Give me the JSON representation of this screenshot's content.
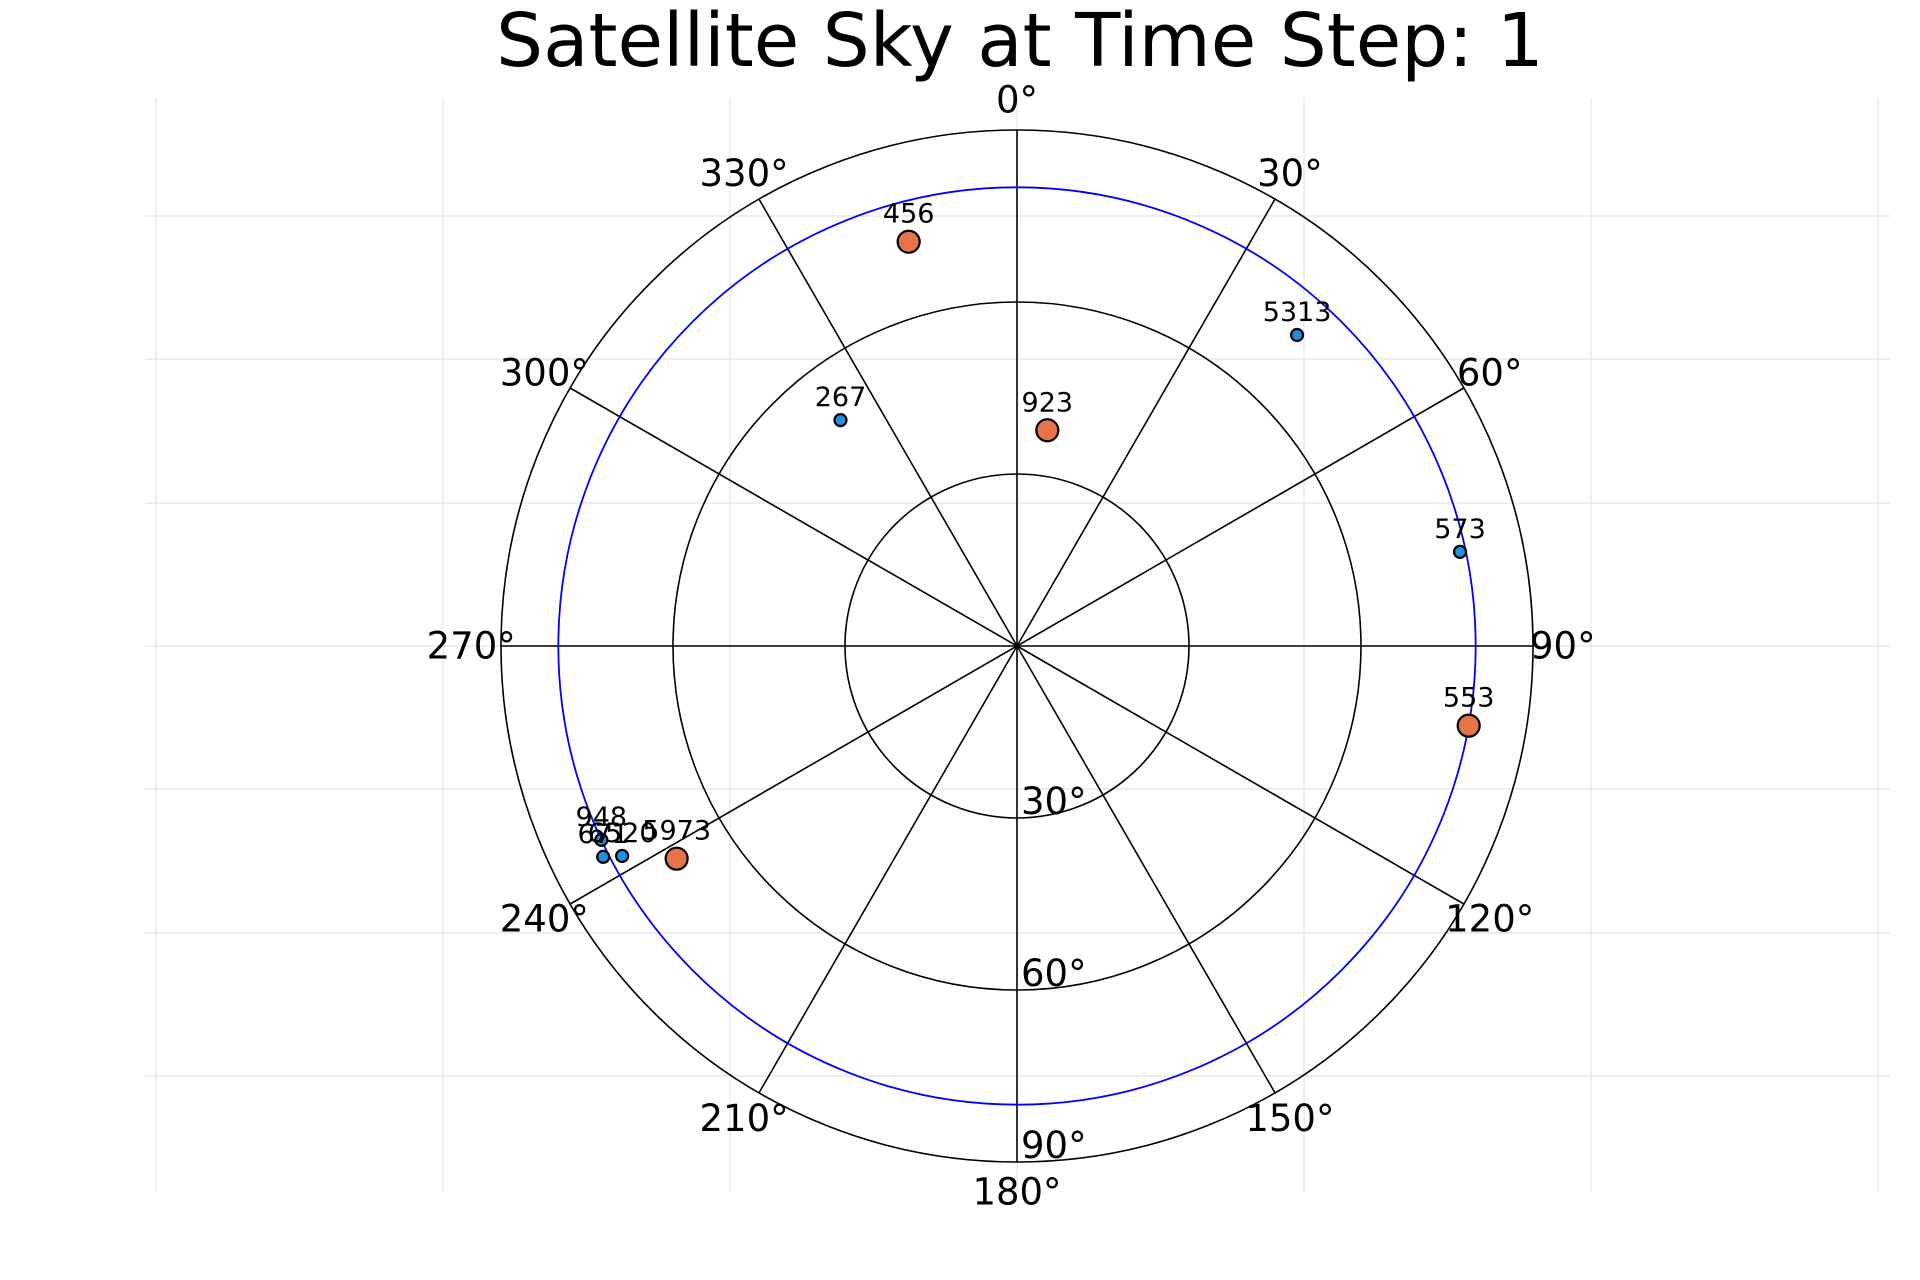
{
  "chart_data": {
    "type": "scatter",
    "projection": "polar",
    "title": "Satellite Sky at Time Step:  1",
    "angular_axis": {
      "zero_location": "top",
      "direction": "clockwise",
      "tick_labels": [
        "0°",
        "30°",
        "60°",
        "90°",
        "120°",
        "150°",
        "180°",
        "210°",
        "240°",
        "270°",
        "300°",
        "330°"
      ]
    },
    "radial_axis": {
      "quantity": "zenith angle (deg)",
      "range": [
        0,
        90
      ],
      "rings": [
        30,
        60,
        90
      ],
      "tick_labels": [
        "30°",
        "60°",
        "90°"
      ]
    },
    "elevation_mask_circle": {
      "zenith_deg": 80,
      "color": "#0000ff"
    },
    "grid": true,
    "series": [
      {
        "color": "#e8734a",
        "marker_size": "large",
        "points": [
          {
            "label": "456",
            "azimuth": 345,
            "zenith": 73
          },
          {
            "label": "923",
            "azimuth": 8,
            "zenith": 38
          },
          {
            "label": "553",
            "azimuth": 100,
            "zenith": 80
          },
          {
            "label": "5973",
            "azimuth": 238,
            "zenith": 70
          }
        ]
      },
      {
        "color": "#1f8fe0",
        "marker_size": "small",
        "points": [
          {
            "label": "5313",
            "azimuth": 42,
            "zenith": 73
          },
          {
            "label": "267",
            "azimuth": 322,
            "zenith": 50
          },
          {
            "label": "573",
            "azimuth": 78,
            "zenith": 79
          },
          {
            "label": "948",
            "azimuth": 245,
            "zenith": 80
          },
          {
            "label": "671",
            "azimuth": 243,
            "zenith": 81
          },
          {
            "label": "6520",
            "azimuth": 242,
            "zenith": 78
          }
        ]
      }
    ]
  }
}
